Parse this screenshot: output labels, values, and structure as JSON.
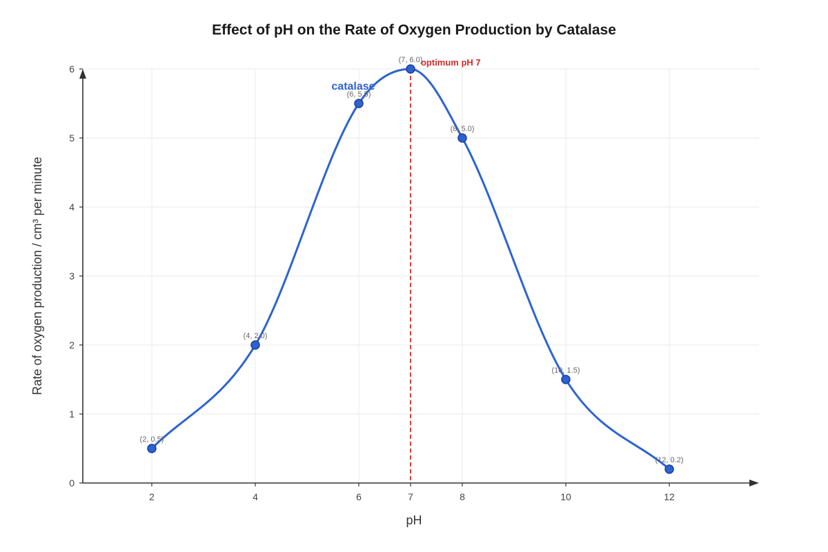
{
  "chart_data": {
    "type": "line",
    "title": "Effect of pH on the Rate of Oxygen Production by Catalase",
    "xlabel": "pH",
    "ylabel": "Rate of oxygen production / cm³ per minute",
    "xlim": [
      0.667,
      13.733
    ],
    "ylim": [
      0,
      6
    ],
    "x_ticks": [
      2,
      4,
      6,
      7,
      8,
      10,
      12
    ],
    "y_ticks": [
      0,
      1,
      2,
      3,
      4,
      5,
      6
    ],
    "grid": true,
    "series": [
      {
        "name": "catalase",
        "color": "#2d63d1",
        "x": [
          2,
          4,
          6,
          7,
          8,
          10,
          12
        ],
        "y": [
          0.5,
          2.0,
          5.5,
          6.0,
          5.0,
          1.5,
          0.2
        ],
        "point_labels": [
          "(2, 0.5)",
          "(4, 2.0)",
          "(6, 5.5)",
          "(7, 6.0)",
          "(8, 5.0)",
          "(10, 1.5)",
          "(12, 0.2)"
        ]
      }
    ],
    "annotations": [
      {
        "type": "vline",
        "x": 7,
        "label": "optimum pH 7",
        "color": "#d42a2a"
      }
    ]
  }
}
